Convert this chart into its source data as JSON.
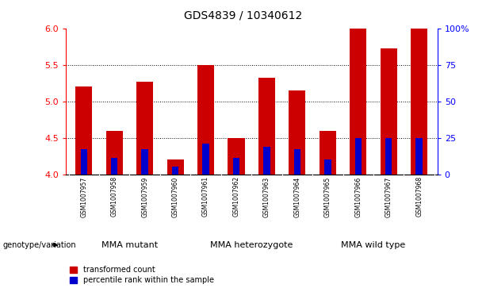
{
  "title": "GDS4839 / 10340612",
  "samples": [
    "GSM1007957",
    "GSM1007958",
    "GSM1007959",
    "GSM1007960",
    "GSM1007961",
    "GSM1007962",
    "GSM1007963",
    "GSM1007964",
    "GSM1007965",
    "GSM1007966",
    "GSM1007967",
    "GSM1007968"
  ],
  "red_values": [
    5.21,
    4.6,
    5.27,
    4.2,
    5.5,
    4.5,
    5.33,
    5.15,
    4.6,
    6.0,
    5.73,
    6.0
  ],
  "blue_values": [
    4.35,
    4.22,
    4.35,
    4.1,
    4.42,
    4.22,
    4.38,
    4.35,
    4.2,
    4.5,
    4.5,
    4.5
  ],
  "ymin": 4.0,
  "ymax": 6.0,
  "yticks": [
    4.0,
    4.5,
    5.0,
    5.5,
    6.0
  ],
  "right_yticks": [
    0,
    25,
    50,
    75,
    100
  ],
  "bar_color_red": "#CC0000",
  "bar_color_blue": "#0000CC",
  "bg_color_plot": "#FFFFFF",
  "bg_color_xlabel": "#C8C8C8",
  "bg_color_group": "#90EE90",
  "groups": [
    {
      "label": "MMA mutant",
      "start": 0,
      "end": 3
    },
    {
      "label": "MMA heterozygote",
      "start": 4,
      "end": 7
    },
    {
      "label": "MMA wild type",
      "start": 8,
      "end": 11
    }
  ],
  "genotype_label": "genotype/variation",
  "legend_red": "transformed count",
  "legend_blue": "percentile rank within the sample",
  "bar_width": 0.55,
  "blue_bar_width": 0.22,
  "title_fontsize": 10,
  "tick_fontsize": 8,
  "sample_fontsize": 5.5,
  "group_fontsize": 8,
  "legend_fontsize": 7
}
